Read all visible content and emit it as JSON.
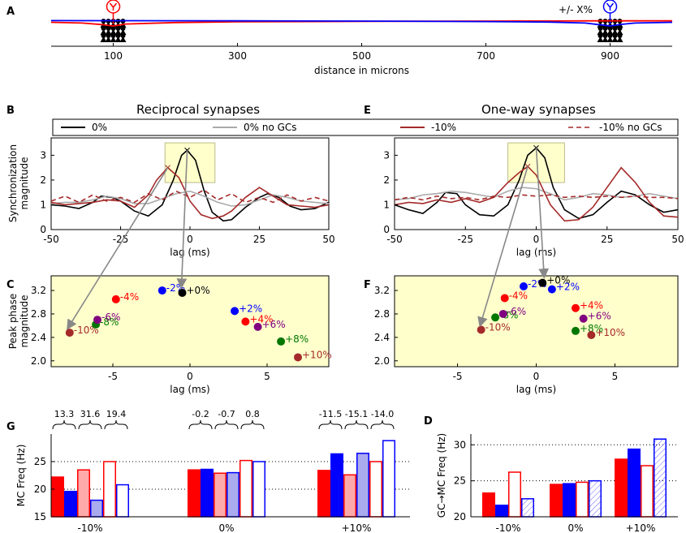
{
  "colors": {
    "red": "#ff0000",
    "blue": "#0000ff",
    "black": "#000000",
    "gray": "#aaaaaa",
    "darkred": "#a52a2a",
    "maroon": "#8b2020",
    "purple": "#800080",
    "green": "#007700",
    "panel_bg": "#ffffcc",
    "highlight": "#ffffcc",
    "pink": "#ffaaaa",
    "lavender": "#aaaaee"
  },
  "panel_labels": [
    "A",
    "B",
    "C",
    "D",
    "E",
    "F",
    "G"
  ],
  "chart_data": [
    {
      "id": "A",
      "type": "line",
      "title": "",
      "xlabel": "distance in microns",
      "xlim": [
        0,
        1000
      ],
      "xticks": [
        100,
        300,
        500,
        700,
        900
      ],
      "annotation": "+/- X%",
      "cells": [
        {
          "x": 100,
          "color": "red"
        },
        {
          "x": 900,
          "color": "blue"
        }
      ],
      "series": [
        {
          "name": "red mitral cell",
          "color": "red",
          "x": [
            0,
            50,
            80,
            100,
            120,
            200,
            300,
            500,
            700,
            800,
            880,
            900,
            920,
            1000
          ],
          "y": [
            -0.25,
            -0.4,
            -0.7,
            -1.0,
            -0.6,
            -0.3,
            -0.15,
            -0.05,
            0.0,
            0.02,
            0.05,
            0.05,
            0.05,
            0.05
          ]
        },
        {
          "name": "blue mitral cell",
          "color": "blue",
          "x": [
            0,
            100,
            300,
            500,
            700,
            800,
            860,
            880,
            900,
            920,
            940,
            1000
          ],
          "y": [
            0.1,
            0.08,
            0.05,
            0.0,
            -0.1,
            -0.2,
            -0.4,
            -0.7,
            -1.0,
            -0.65,
            -0.4,
            -0.25
          ]
        }
      ]
    },
    {
      "id": "B",
      "type": "line",
      "title": "Reciprocal synapses",
      "xlabel": "lag (ms)",
      "ylabel": "Synchronization magnitude",
      "xlim": [
        -50,
        50
      ],
      "ylim": [
        0,
        3.7
      ],
      "xticks": [
        -50,
        -25,
        0,
        25,
        50
      ],
      "yticks": [
        0,
        1,
        2,
        3
      ],
      "highlight_box": {
        "x": [
          -9,
          9
        ],
        "y": [
          1.9,
          3.5
        ]
      },
      "peaks": [
        {
          "x": -8,
          "y": 2.5,
          "color": "darkred"
        },
        {
          "x": -1,
          "y": 3.2,
          "color": "black"
        }
      ],
      "series": [
        {
          "name": "0%",
          "color": "black",
          "dash": "",
          "x": [
            -50,
            -45,
            -40,
            -35,
            -32,
            -28,
            -25,
            -20,
            -15,
            -10,
            -6,
            -3,
            -1,
            2,
            5,
            8,
            12,
            15,
            20,
            25,
            28,
            32,
            36,
            40,
            45,
            50
          ],
          "y": [
            1.0,
            0.95,
            0.85,
            1.1,
            1.35,
            1.3,
            1.15,
            0.75,
            0.55,
            1.0,
            2.0,
            3.0,
            3.2,
            2.8,
            1.6,
            0.7,
            0.35,
            0.4,
            0.9,
            1.3,
            1.45,
            1.3,
            0.95,
            0.8,
            0.85,
            1.1
          ]
        },
        {
          "name": "0% no GCs",
          "color": "gray",
          "dash": "",
          "x": [
            -50,
            -45,
            -40,
            -35,
            -30,
            -25,
            -20,
            -15,
            -10,
            -5,
            0,
            5,
            10,
            15,
            20,
            25,
            30,
            35,
            40,
            45,
            50
          ],
          "y": [
            1.05,
            1.1,
            1.1,
            1.2,
            1.35,
            1.25,
            1.05,
            1.05,
            1.25,
            1.45,
            1.55,
            1.35,
            1.1,
            0.95,
            1.0,
            1.2,
            1.4,
            1.3,
            1.15,
            1.1,
            1.05
          ]
        },
        {
          "name": "-10%",
          "color": "darkred",
          "dash": "",
          "x": [
            -50,
            -45,
            -40,
            -35,
            -30,
            -25,
            -20,
            -15,
            -12,
            -8,
            -4,
            0,
            4,
            8,
            12,
            15,
            20,
            25,
            30,
            35,
            40,
            45,
            50
          ],
          "y": [
            1.1,
            1.0,
            1.05,
            1.1,
            1.2,
            1.15,
            0.9,
            1.4,
            2.0,
            2.5,
            2.1,
            1.15,
            0.6,
            0.45,
            0.55,
            0.75,
            1.3,
            1.7,
            1.35,
            1.0,
            0.95,
            0.9,
            1.0
          ]
        },
        {
          "name": "-10% no GCs",
          "color": "darkred",
          "dash": "6,4",
          "x": [
            -50,
            -45,
            -40,
            -35,
            -30,
            -25,
            -20,
            -15,
            -10,
            -5,
            0,
            5,
            10,
            15,
            20,
            25,
            30,
            35,
            40,
            45,
            50
          ],
          "y": [
            1.15,
            1.35,
            1.1,
            1.4,
            1.15,
            1.3,
            1.1,
            1.45,
            1.2,
            1.55,
            1.3,
            1.6,
            1.2,
            1.45,
            1.1,
            1.3,
            1.1,
            1.4,
            1.15,
            1.3,
            1.15
          ]
        }
      ]
    },
    {
      "id": "E",
      "type": "line",
      "title": "One-way synapses",
      "xlabel": "lag (ms)",
      "ylabel": "",
      "xlim": [
        -50,
        50
      ],
      "ylim": [
        0,
        3.7
      ],
      "xticks": [
        -50,
        -25,
        0,
        25,
        50
      ],
      "yticks": [
        0,
        1,
        2,
        3
      ],
      "highlight_box": {
        "x": [
          -10,
          10
        ],
        "y": [
          1.9,
          3.5
        ]
      },
      "peaks": [
        {
          "x": -3,
          "y": 2.55,
          "color": "darkred"
        },
        {
          "x": 0,
          "y": 3.3,
          "color": "black"
        }
      ],
      "series": [
        {
          "name": "0%",
          "color": "black",
          "dash": "",
          "x": [
            -50,
            -45,
            -40,
            -35,
            -32,
            -28,
            -25,
            -20,
            -15,
            -10,
            -6,
            -3,
            0,
            3,
            6,
            10,
            15,
            20,
            25,
            30,
            35,
            40,
            45,
            50
          ],
          "y": [
            1.0,
            0.8,
            0.65,
            1.1,
            1.5,
            1.45,
            1.0,
            0.6,
            0.55,
            1.0,
            2.0,
            3.0,
            3.3,
            2.9,
            1.7,
            0.8,
            0.45,
            0.6,
            1.1,
            1.55,
            1.4,
            1.0,
            0.7,
            0.8
          ]
        },
        {
          "name": "0% no GCs",
          "color": "gray",
          "dash": "",
          "x": [
            -50,
            -45,
            -40,
            -35,
            -30,
            -25,
            -20,
            -15,
            -10,
            -5,
            0,
            5,
            10,
            15,
            20,
            25,
            30,
            35,
            40,
            45,
            50
          ],
          "y": [
            1.2,
            1.25,
            1.4,
            1.45,
            1.55,
            1.5,
            1.4,
            1.3,
            1.55,
            1.7,
            1.65,
            1.45,
            1.2,
            1.3,
            1.45,
            1.4,
            1.3,
            1.35,
            1.45,
            1.35,
            1.25
          ]
        },
        {
          "name": "-10%",
          "color": "darkred",
          "dash": "",
          "x": [
            -50,
            -45,
            -40,
            -35,
            -30,
            -25,
            -20,
            -15,
            -10,
            -6,
            -3,
            0,
            5,
            10,
            15,
            20,
            25,
            30,
            35,
            40,
            45,
            50
          ],
          "y": [
            1.0,
            1.1,
            1.05,
            1.2,
            1.1,
            1.25,
            1.1,
            1.3,
            1.9,
            2.3,
            2.55,
            2.2,
            1.0,
            0.35,
            0.4,
            0.9,
            1.7,
            2.5,
            1.9,
            1.1,
            0.55,
            0.5
          ]
        },
        {
          "name": "-10% no GCs",
          "color": "darkred",
          "dash": "6,4",
          "x": [
            -50,
            -45,
            -40,
            -35,
            -30,
            -25,
            -20,
            -15,
            -10,
            -5,
            0,
            5,
            10,
            15,
            20,
            25,
            30,
            35,
            40,
            45,
            50
          ],
          "y": [
            1.2,
            1.3,
            1.2,
            1.35,
            1.25,
            1.3,
            1.2,
            1.35,
            1.3,
            1.4,
            1.35,
            1.4,
            1.3,
            1.35,
            1.3,
            1.35,
            1.3,
            1.35,
            1.3,
            1.3,
            1.25
          ]
        }
      ]
    },
    {
      "id": "C",
      "type": "scatter",
      "xlabel": "lag (ms)",
      "ylabel": "Peak phase magnitude",
      "xlim": [
        -9,
        9
      ],
      "ylim": [
        1.9,
        3.45
      ],
      "xticks": [
        -5,
        0,
        5
      ],
      "yticks": [
        2.0,
        2.4,
        2.8,
        3.2
      ],
      "points": [
        {
          "label": "-10%",
          "x": -7.8,
          "y": 2.48,
          "color": "darkred"
        },
        {
          "label": "-8%",
          "x": -6.1,
          "y": 2.62,
          "color": "green"
        },
        {
          "label": "-6%",
          "x": -6.0,
          "y": 2.7,
          "color": "purple"
        },
        {
          "label": "-4%",
          "x": -4.8,
          "y": 3.05,
          "color": "red"
        },
        {
          "label": "-2%",
          "x": -1.8,
          "y": 3.2,
          "color": "blue"
        },
        {
          "label": "+0%",
          "x": -0.5,
          "y": 3.16,
          "color": "black"
        },
        {
          "label": "+2%",
          "x": 2.9,
          "y": 2.85,
          "color": "blue"
        },
        {
          "label": "+4%",
          "x": 3.6,
          "y": 2.67,
          "color": "red"
        },
        {
          "label": "+6%",
          "x": 4.4,
          "y": 2.58,
          "color": "purple"
        },
        {
          "label": "+8%",
          "x": 5.9,
          "y": 2.33,
          "color": "green"
        },
        {
          "label": "+10%",
          "x": 7.0,
          "y": 2.06,
          "color": "darkred"
        }
      ]
    },
    {
      "id": "F",
      "type": "scatter",
      "xlabel": "lag (ms)",
      "ylabel": "",
      "xlim": [
        -9,
        9
      ],
      "ylim": [
        1.9,
        3.45
      ],
      "xticks": [
        -5,
        0,
        5
      ],
      "yticks": [
        2.0,
        2.4,
        2.8,
        3.2
      ],
      "points": [
        {
          "label": "-10%",
          "x": -3.5,
          "y": 2.53,
          "color": "darkred"
        },
        {
          "label": "-8%",
          "x": -2.6,
          "y": 2.74,
          "color": "green"
        },
        {
          "label": "-6%",
          "x": -2.1,
          "y": 2.8,
          "color": "purple"
        },
        {
          "label": "-4%",
          "x": -2.0,
          "y": 3.07,
          "color": "red"
        },
        {
          "label": "-2%",
          "x": -0.8,
          "y": 3.27,
          "color": "blue"
        },
        {
          "label": "+0%",
          "x": 0.4,
          "y": 3.33,
          "color": "black"
        },
        {
          "label": "+2%",
          "x": 1.0,
          "y": 3.22,
          "color": "blue"
        },
        {
          "label": "+4%",
          "x": 2.5,
          "y": 2.9,
          "color": "red"
        },
        {
          "label": "+6%",
          "x": 3.0,
          "y": 2.72,
          "color": "purple"
        },
        {
          "label": "+8%",
          "x": 2.5,
          "y": 2.51,
          "color": "green"
        },
        {
          "label": "+10%",
          "x": 3.5,
          "y": 2.44,
          "color": "darkred"
        }
      ]
    },
    {
      "id": "D",
      "type": "bar",
      "ylabel": "MC Freq (Hz)",
      "ylim": [
        15,
        30
      ],
      "yticks": [
        15,
        20,
        25
      ],
      "dotted_lines": [
        20,
        25
      ],
      "categories": [
        "-10%",
        "0%",
        "+10%"
      ],
      "bar_styles": [
        "red",
        "blue",
        "pink",
        "lavender",
        "redoutline",
        "blueoutline"
      ],
      "values": [
        [
          22.2,
          19.6,
          23.5,
          18.0,
          25.0,
          20.8
        ],
        [
          23.5,
          23.6,
          22.9,
          23.0,
          25.2,
          25.0
        ],
        [
          23.4,
          26.4,
          22.6,
          26.5,
          25.0,
          28.8
        ]
      ],
      "diff_labels": [
        [
          "13.3",
          "31.6",
          "19.4"
        ],
        [
          "-0.2",
          "-0.7",
          "0.8"
        ],
        [
          "-11.5",
          "-15.1",
          "-14.0"
        ]
      ]
    },
    {
      "id": "G",
      "type": "bar",
      "ylabel": "GC→MC Freq (Hz)",
      "ylim": [
        20,
        31.5
      ],
      "yticks": [
        20,
        25,
        30
      ],
      "dotted_lines": [
        25,
        30
      ],
      "categories": [
        "-10%",
        "0%",
        "+10%"
      ],
      "bar_styles": [
        "red",
        "blue",
        "redoutline",
        "bluehatch"
      ],
      "values": [
        [
          23.3,
          21.6,
          26.2,
          22.5
        ],
        [
          24.5,
          24.6,
          24.8,
          25.0
        ],
        [
          28.0,
          29.4,
          27.1,
          30.8
        ]
      ]
    }
  ],
  "legend": [
    "0%",
    "0% no GCs",
    "-10%",
    "-10% no GCs"
  ]
}
